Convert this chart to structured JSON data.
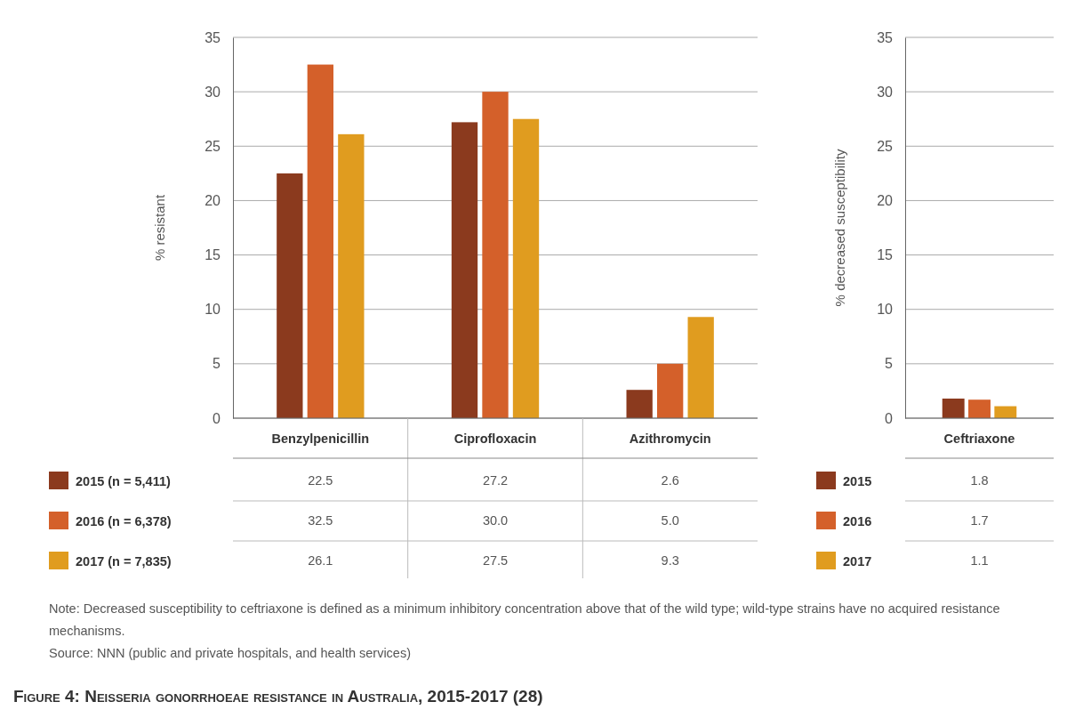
{
  "chart_data": [
    {
      "type": "bar",
      "title": "Figure 4: Neisseria gonorrhoeae resistance in Australia, 2015-2017 (28)",
      "ylabel": "% resistant",
      "categories": [
        "Benzylpenicillin",
        "Ciprofloxacin",
        "Azithromycin"
      ],
      "series": [
        {
          "name": "2015 (n = 5,411)",
          "color": "#8b3a1e",
          "values": [
            22.5,
            27.2,
            2.6
          ]
        },
        {
          "name": "2016 (n = 6,378)",
          "color": "#d4602a",
          "values": [
            32.5,
            30.0,
            5.0
          ]
        },
        {
          "name": "2017 (n = 7,835)",
          "color": "#e09c1f",
          "values": [
            26.1,
            27.5,
            9.3
          ]
        }
      ],
      "value_labels": [
        [
          "22.5",
          "27.2",
          "2.6"
        ],
        [
          "32.5",
          "30.0",
          "5.0"
        ],
        [
          "26.1",
          "27.5",
          "9.3"
        ]
      ],
      "ylim": [
        0,
        35
      ],
      "yticks": [
        0,
        5,
        10,
        15,
        20,
        25,
        30,
        35
      ],
      "grid": "y",
      "legend": "bottom left",
      "annotations": [
        "Note: Decreased susceptibility to ceftriaxone is defined as a minimum inhibitory concentration above that of the wild type; wild-type strains have no acquired resistance mechanisms.",
        "Source: NNN (public and private hospitals, and health services)"
      ]
    },
    {
      "type": "bar",
      "ylabel": "% decreased susceptibility",
      "categories": [
        "Ceftriaxone"
      ],
      "series": [
        {
          "name": "2015",
          "color": "#8b3a1e",
          "values": [
            1.8
          ]
        },
        {
          "name": "2016",
          "color": "#d4602a",
          "values": [
            1.7
          ]
        },
        {
          "name": "2017",
          "color": "#e09c1f",
          "values": [
            1.1
          ]
        }
      ],
      "value_labels": [
        [
          "1.8"
        ],
        [
          "1.7"
        ],
        [
          "1.1"
        ]
      ],
      "ylim": [
        0,
        35
      ],
      "yticks": [
        0,
        5,
        10,
        15,
        20,
        25,
        30,
        35
      ],
      "grid": "y",
      "legend": "bottom left"
    }
  ]
}
